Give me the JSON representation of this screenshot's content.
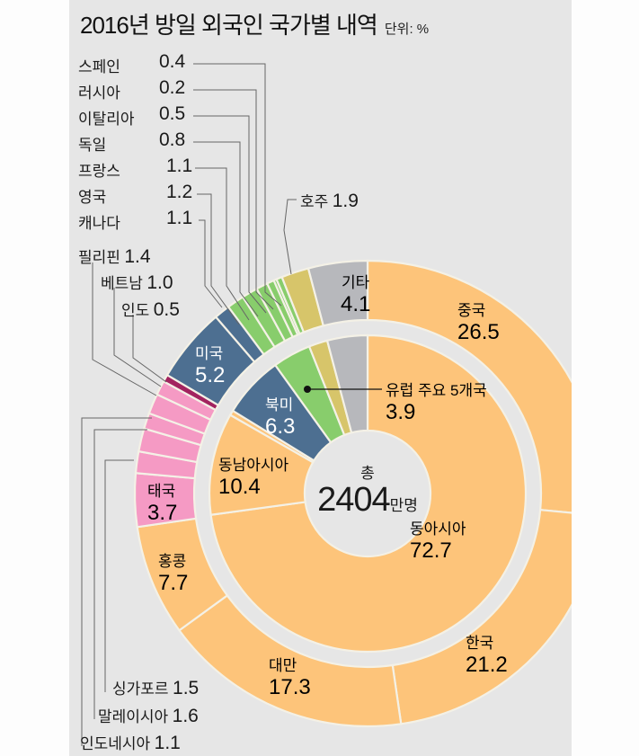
{
  "title": "2016년 방일 외국인 국가별 내역",
  "unit": "단위: %",
  "center": {
    "prefix": "총",
    "value": "2404",
    "suffix": "만명"
  },
  "colors": {
    "east_asia": "#fdc47a",
    "southeast_asia": "#f59ac4",
    "india": "#a3235f",
    "north_america": "#4d6f91",
    "europe": "#88cd6c",
    "oceania": "#d7c56a",
    "other": "#b7b8bc",
    "background": "#e6e6e6"
  },
  "chart_data": {
    "type": "pie",
    "title": "2016년 방일 외국인 국가별 내역",
    "unit": "%",
    "total_label": "총 2404만명",
    "series": [
      {
        "name": "outer (countries)",
        "categories": [
          "중국",
          "한국",
          "대만",
          "홍콩",
          "태국",
          "싱가포르",
          "말레이시아",
          "인도네시아",
          "필리핀",
          "베트남",
          "인도",
          "미국",
          "캐나다",
          "영국",
          "프랑스",
          "독일",
          "이탈리아",
          "러시아",
          "스페인",
          "호주",
          "기타"
        ],
        "values": [
          26.5,
          21.2,
          17.3,
          7.7,
          3.7,
          1.5,
          1.6,
          1.1,
          1.4,
          1.0,
          0.5,
          5.2,
          1.1,
          1.2,
          1.1,
          0.8,
          0.5,
          0.2,
          0.4,
          1.9,
          4.1
        ],
        "groups": [
          "east_asia",
          "east_asia",
          "east_asia",
          "east_asia",
          "southeast_asia",
          "southeast_asia",
          "southeast_asia",
          "southeast_asia",
          "southeast_asia",
          "southeast_asia",
          "india",
          "north_america",
          "north_america",
          "europe",
          "europe",
          "europe",
          "europe",
          "europe",
          "europe",
          "oceania",
          "other"
        ]
      },
      {
        "name": "inner (regions)",
        "categories": [
          "동아시아",
          "동남아시아",
          "인도",
          "북미",
          "유럽 주요 5개국",
          "호주",
          "기타"
        ],
        "values": [
          72.7,
          10.4,
          0.5,
          6.3,
          3.9,
          1.9,
          4.1
        ],
        "groups": [
          "east_asia",
          "east_asia",
          "east_asia",
          "north_america",
          "europe",
          "oceania",
          "other"
        ]
      }
    ]
  },
  "labels": {
    "outer": {
      "china": {
        "name": "중국",
        "value": "26.5"
      },
      "korea": {
        "name": "한국",
        "value": "21.2"
      },
      "taiwan": {
        "name": "대만",
        "value": "17.3"
      },
      "hongkong": {
        "name": "홍콩",
        "value": "7.7"
      },
      "thailand": {
        "name": "태국",
        "value": "3.7"
      },
      "usa": {
        "name": "미국",
        "value": "5.2"
      },
      "other": {
        "name": "기타",
        "value": "4.1"
      }
    },
    "inner": {
      "east_asia": {
        "name": "동아시아",
        "value": "72.7"
      },
      "southeast_asia": {
        "name": "동남아시아",
        "value": "10.4"
      },
      "north_america": {
        "name": "북미",
        "value": "6.3"
      },
      "europe": {
        "name": "유럽 주요 5개국",
        "value": "3.9"
      }
    },
    "callouts_top": [
      {
        "name": "스페인",
        "value": "0.4"
      },
      {
        "name": "러시아",
        "value": "0.2"
      },
      {
        "name": "이탈리아",
        "value": "0.5"
      },
      {
        "name": "독일",
        "value": "0.8"
      },
      {
        "name": "프랑스",
        "value": "1.1"
      },
      {
        "name": "영국",
        "value": "1.2"
      },
      {
        "name": "캐나다",
        "value": "1.1"
      }
    ],
    "australia": {
      "name": "호주",
      "value": "1.9"
    },
    "callouts_left": [
      {
        "name": "필리핀",
        "value": "1.4"
      },
      {
        "name": "베트남",
        "value": "1.0"
      },
      {
        "name": "인도",
        "value": "0.5"
      }
    ],
    "callouts_bottom": [
      {
        "name": "싱가포르",
        "value": "1.5"
      },
      {
        "name": "말레이시아",
        "value": "1.6"
      },
      {
        "name": "인도네시아",
        "value": "1.1"
      }
    ]
  }
}
